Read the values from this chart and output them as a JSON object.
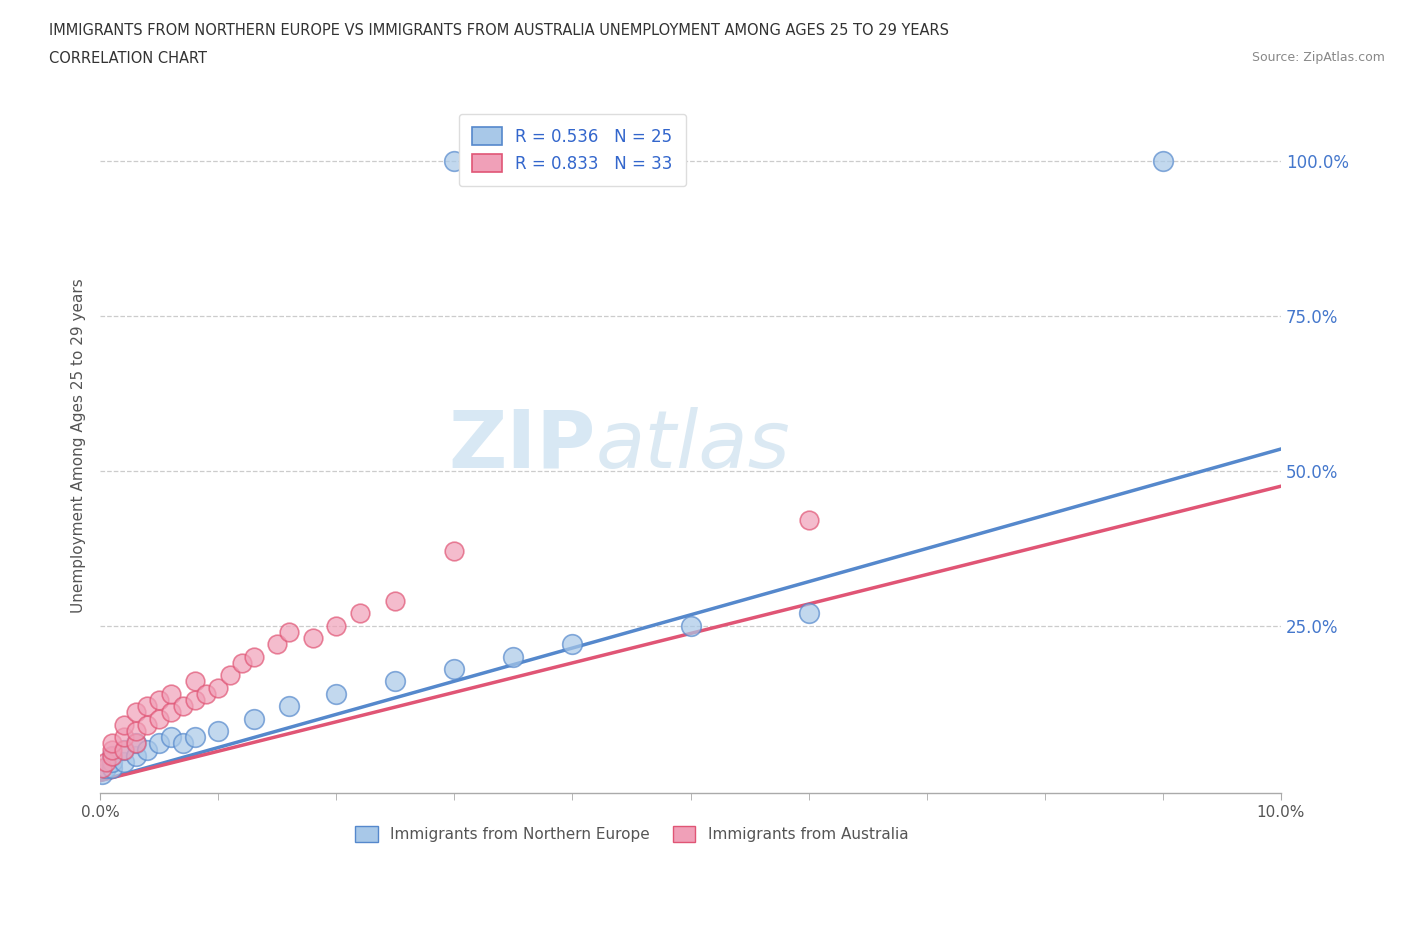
{
  "title_line1": "IMMIGRANTS FROM NORTHERN EUROPE VS IMMIGRANTS FROM AUSTRALIA UNEMPLOYMENT AMONG AGES 25 TO 29 YEARS",
  "title_line2": "CORRELATION CHART",
  "source": "Source: ZipAtlas.com",
  "ylabel": "Unemployment Among Ages 25 to 29 years",
  "xlim": [
    0.0,
    0.1
  ],
  "ylim": [
    -0.02,
    1.1
  ],
  "ytick_labels": [
    "25.0%",
    "50.0%",
    "75.0%",
    "100.0%"
  ],
  "ytick_vals": [
    0.25,
    0.5,
    0.75,
    1.0
  ],
  "color_blue": "#a8c8e8",
  "color_pink": "#f0a0b8",
  "line_blue": "#5588cc",
  "line_pink": "#e05575",
  "watermark_ZIP": "ZIP",
  "watermark_atlas": "atlas",
  "blue_x": [
    0.0002,
    0.0005,
    0.001,
    0.001,
    0.001,
    0.002,
    0.002,
    0.003,
    0.003,
    0.004,
    0.005,
    0.006,
    0.007,
    0.008,
    0.01,
    0.013,
    0.016,
    0.02,
    0.025,
    0.03,
    0.035,
    0.04,
    0.05,
    0.06,
    0.03,
    0.09
  ],
  "blue_y": [
    0.01,
    0.02,
    0.02,
    0.03,
    0.04,
    0.03,
    0.05,
    0.04,
    0.06,
    0.05,
    0.06,
    0.07,
    0.06,
    0.07,
    0.08,
    0.1,
    0.12,
    0.14,
    0.16,
    0.18,
    0.2,
    0.22,
    0.25,
    0.27,
    1.0,
    1.0
  ],
  "pink_x": [
    0.0002,
    0.0005,
    0.001,
    0.001,
    0.001,
    0.002,
    0.002,
    0.002,
    0.003,
    0.003,
    0.003,
    0.004,
    0.004,
    0.005,
    0.005,
    0.006,
    0.006,
    0.007,
    0.008,
    0.008,
    0.009,
    0.01,
    0.011,
    0.012,
    0.013,
    0.015,
    0.016,
    0.018,
    0.02,
    0.022,
    0.025,
    0.03,
    0.06
  ],
  "pink_y": [
    0.02,
    0.03,
    0.04,
    0.05,
    0.06,
    0.05,
    0.07,
    0.09,
    0.06,
    0.08,
    0.11,
    0.09,
    0.12,
    0.1,
    0.13,
    0.11,
    0.14,
    0.12,
    0.13,
    0.16,
    0.14,
    0.15,
    0.17,
    0.19,
    0.2,
    0.22,
    0.24,
    0.23,
    0.25,
    0.27,
    0.29,
    0.37,
    0.42
  ],
  "blue_line_x": [
    0.0,
    0.1
  ],
  "blue_line_y": [
    0.0,
    0.535
  ],
  "pink_line_x": [
    0.0,
    0.1
  ],
  "pink_line_y": [
    0.0,
    0.475
  ]
}
